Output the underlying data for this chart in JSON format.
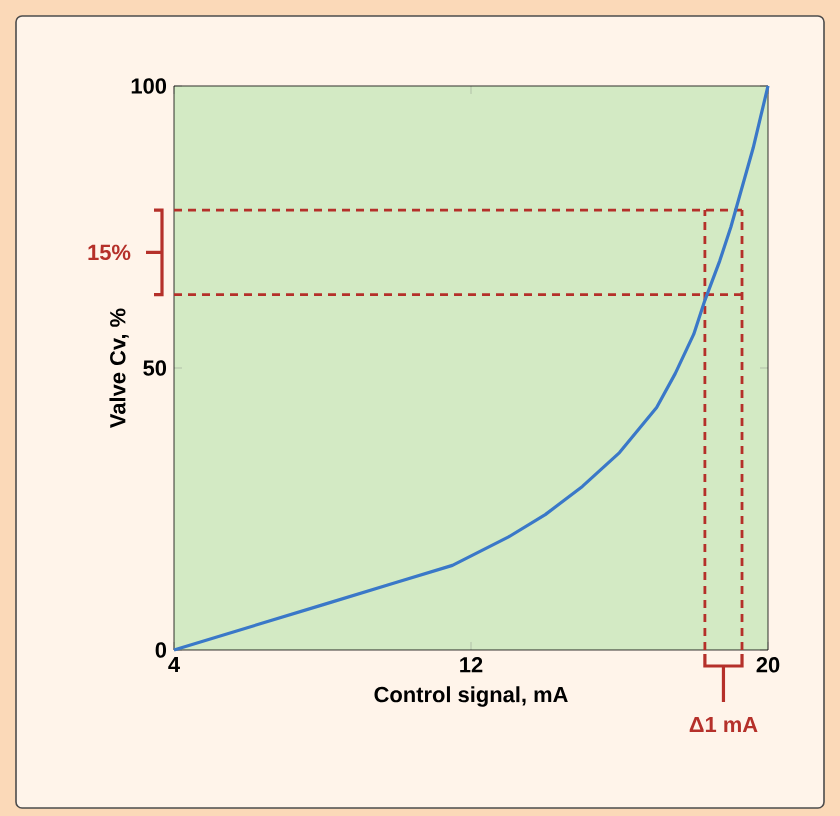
{
  "chart_data": {
    "type": "line",
    "xlabel": "Control signal, mA",
    "ylabel": "Valve Cv, %",
    "x": [
      4,
      6,
      8,
      10,
      11.5,
      13,
      14,
      15,
      16,
      17,
      17.5,
      18,
      18.3,
      18.7,
      19,
      19.3,
      19.6,
      20
    ],
    "series": [
      {
        "color": "#3a78c8",
        "values": [
          0,
          4,
          8,
          12,
          15,
          20,
          24,
          29,
          35,
          43,
          49,
          56,
          62,
          69,
          75,
          82,
          89,
          100
        ]
      }
    ],
    "xlim": [
      4,
      20
    ],
    "ylim": [
      0,
      100
    ],
    "xticks": [
      4,
      12,
      20
    ],
    "yticks": [
      0,
      50,
      100
    ],
    "ref_lines": [
      {
        "axis": "y",
        "value": 63,
        "color": "#b5302a",
        "line_style": "dashed"
      },
      {
        "axis": "y",
        "value": 78,
        "color": "#b5302a",
        "line_style": "dashed"
      },
      {
        "axis": "x",
        "value": 18.3,
        "color": "#b5302a",
        "line_style": "dashed"
      },
      {
        "axis": "x",
        "value": 19.3,
        "color": "#b5302a",
        "line_style": "dashed"
      }
    ],
    "annotations": [
      "15%",
      "Δ1 mA"
    ]
  }
}
